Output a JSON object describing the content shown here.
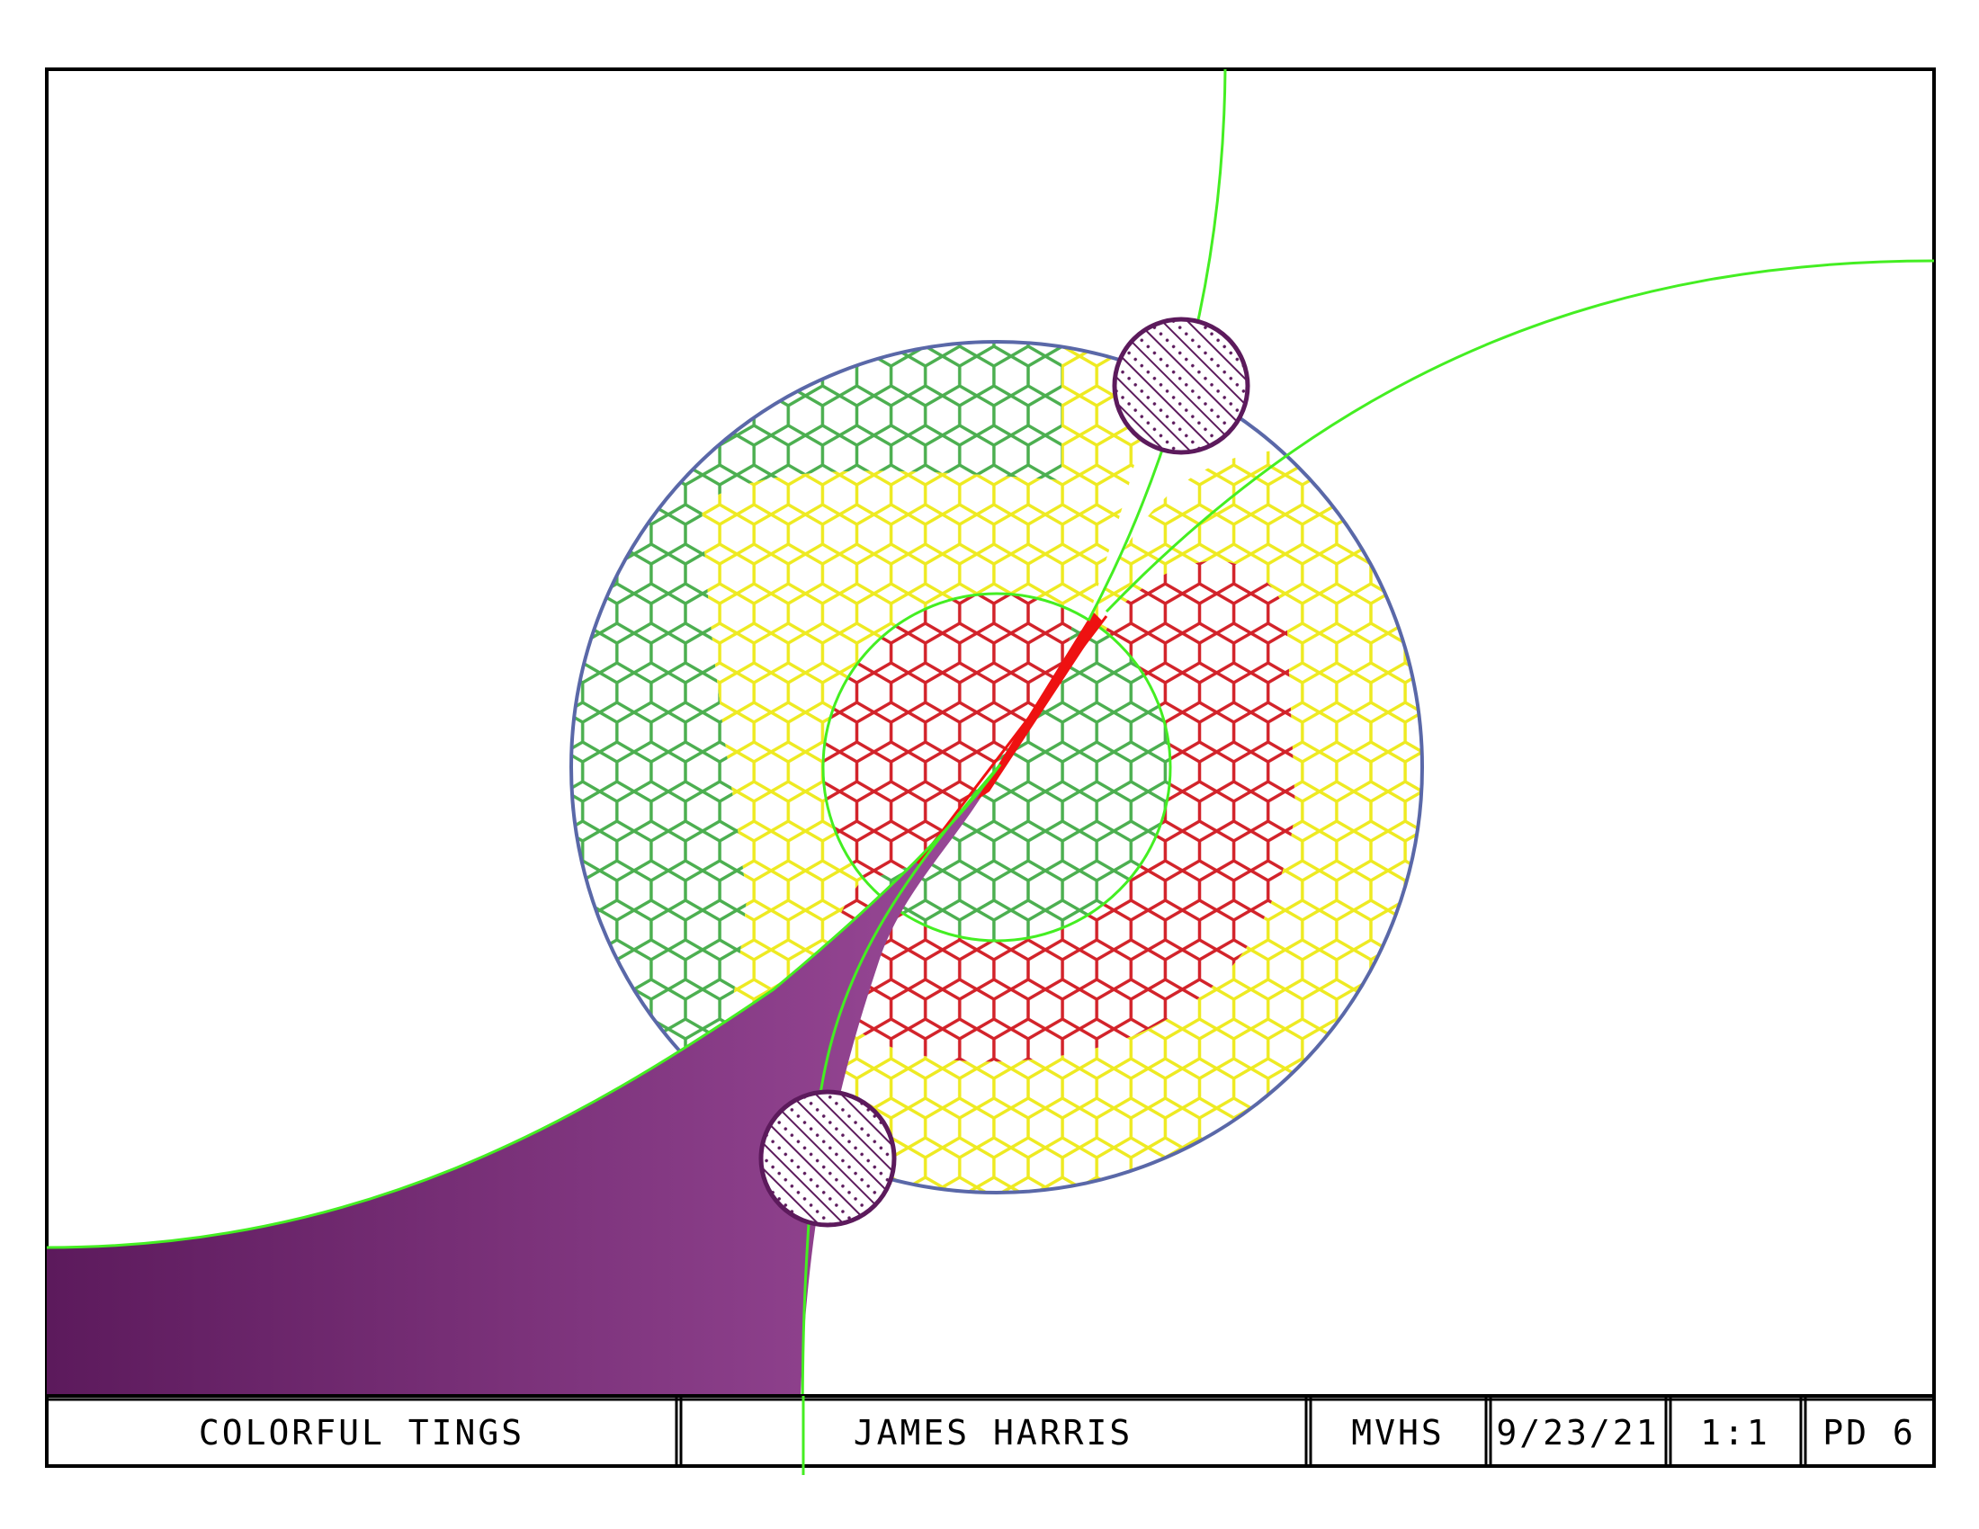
{
  "title_block": {
    "title": "COLORFUL TINGS",
    "author": "JAMES HARRIS",
    "school": "MVHS",
    "date": "9/23/21",
    "scale": "1:1",
    "period": "PD 6"
  },
  "colors": {
    "border": "#000000",
    "outer_circle_stroke": "#5a68a8",
    "construction_line": "#44ee22",
    "hex_green": "#4caf50",
    "hex_yellow": "#eeea22",
    "hex_red": "#d2232a",
    "purple_dark": "#5c1a5c",
    "purple_light": "#9a4a98",
    "red_wedge": "#ee1111"
  },
  "icons": {
    "hatched_circle_top": "hatched-circle-icon",
    "hatched_circle_bottom": "hatched-circle-icon"
  }
}
